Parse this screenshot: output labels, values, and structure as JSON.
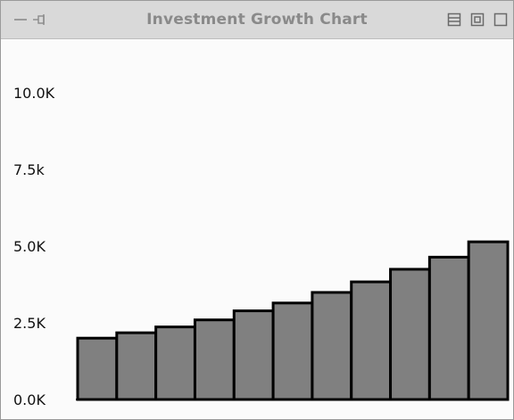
{
  "window": {
    "title": "Investment Growth Chart",
    "controls_left": [
      "minimize-dash-icon",
      "pin-icon"
    ],
    "controls_right": [
      "shade-icon",
      "restore-icon",
      "maximize-icon"
    ]
  },
  "chart_data": {
    "type": "bar",
    "title": "",
    "xlabel": "",
    "ylabel": "",
    "ylim": [
      0,
      11000
    ],
    "y_ticks": [
      0,
      2500,
      5000,
      7500,
      10000
    ],
    "y_tick_labels": [
      "0.0K",
      "2.5K",
      "5.0K",
      "7.5k",
      "10.0K"
    ],
    "grid": false,
    "legend": "none",
    "bar_color": "#808080",
    "bar_edge_color": "#000000",
    "values": [
      2000,
      2175,
      2365,
      2595,
      2890,
      3145,
      3490,
      3835,
      4245,
      4640,
      5140
    ]
  }
}
